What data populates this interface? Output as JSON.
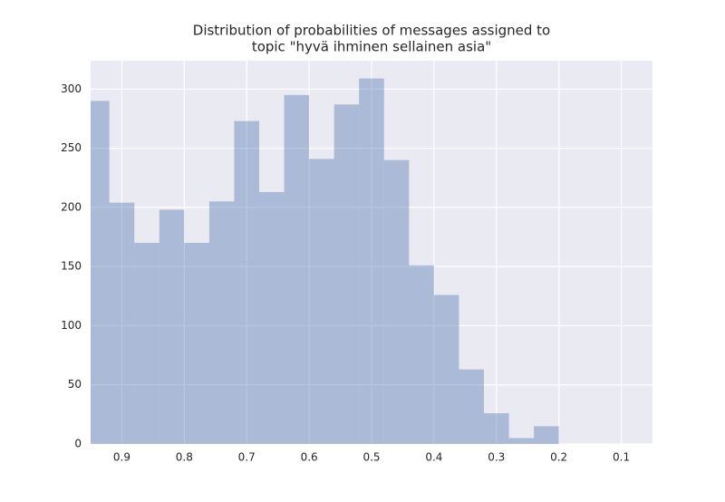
{
  "chart_data": {
    "type": "histogram",
    "title": [
      "Distribution of probabilities of messages assigned to",
      "topic \"hyvä ihminen sellainen asia\""
    ],
    "bins": [
      0.95,
      0.92,
      0.88,
      0.84,
      0.8,
      0.76,
      0.72,
      0.68,
      0.64,
      0.6,
      0.56,
      0.52,
      0.48,
      0.44,
      0.4,
      0.36,
      0.32,
      0.28,
      0.24,
      0.2
    ],
    "values": [
      290,
      204,
      170,
      198,
      170,
      205,
      273,
      213,
      295,
      241,
      287,
      309,
      240,
      151,
      126,
      63,
      26,
      5,
      15
    ],
    "color": "#4c72b0",
    "xlim": [
      0.95,
      0.05
    ],
    "xticks": [
      0.9,
      0.8,
      0.7,
      0.6,
      0.5,
      0.4,
      0.3,
      0.2,
      0.1
    ],
    "ylim": [
      0,
      324
    ],
    "yticks": [
      0,
      50,
      100,
      150,
      200,
      250,
      300
    ],
    "grid": true
  }
}
